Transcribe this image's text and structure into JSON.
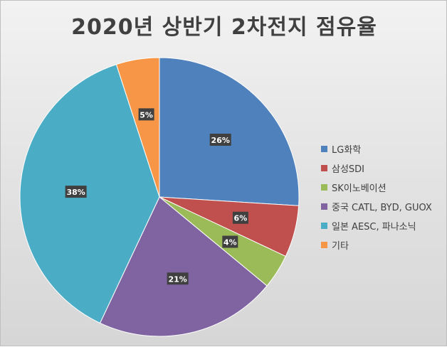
{
  "chart_data": {
    "type": "pie",
    "title": "2020년 상반기 2차전지 점유율",
    "categories": [
      "LG화학",
      "삼성SDI",
      "SK이노베이션",
      "중국 CATL, BYD, GUOX",
      "일본 AESC, 파나소닉",
      "기타"
    ],
    "values": [
      26,
      6,
      4,
      21,
      38,
      5
    ],
    "labels": [
      "26%",
      "6%",
      "4%",
      "21%",
      "38%",
      "5%"
    ],
    "colors": [
      "#4F81BD",
      "#C0504D",
      "#9BBB59",
      "#8064A2",
      "#4BACC6",
      "#F79646"
    ],
    "start_angle_deg": 0,
    "direction": "clockwise",
    "legend_position": "right",
    "data_label_style": "dark box, white bold text"
  }
}
